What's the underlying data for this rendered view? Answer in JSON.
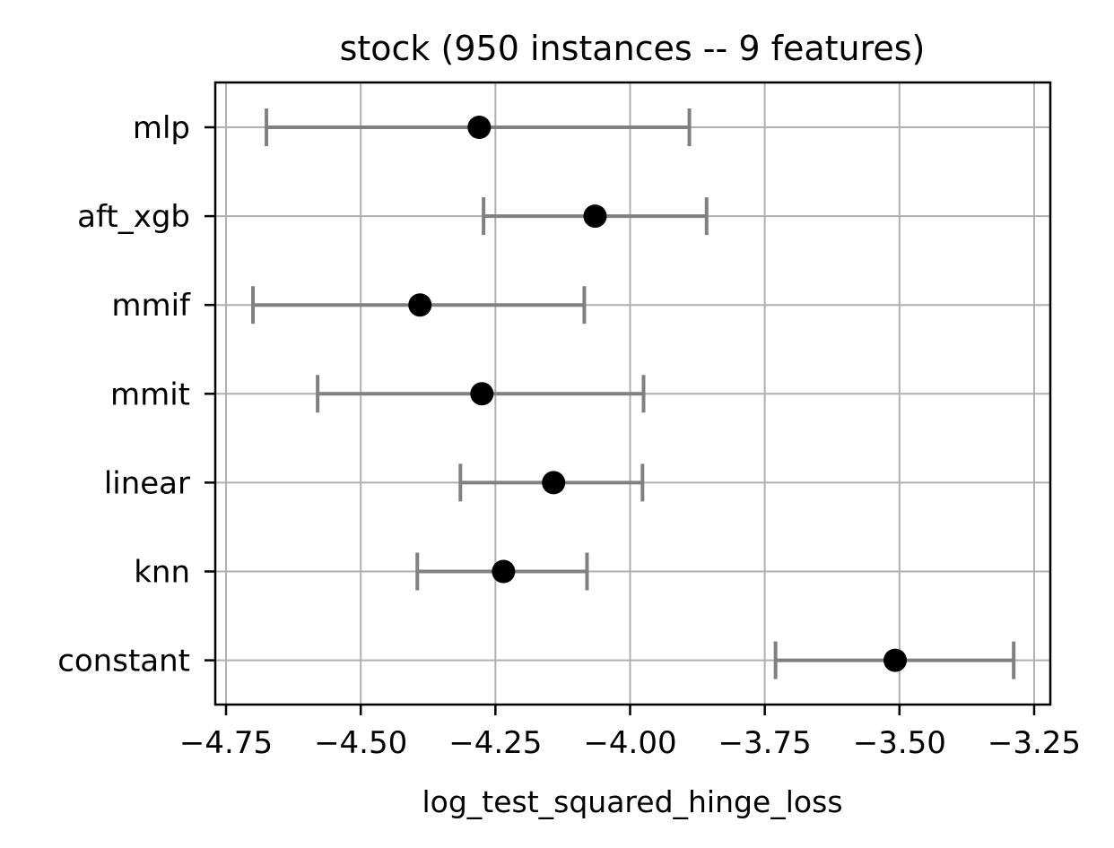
{
  "chart_data": {
    "type": "scatter",
    "title": "stock (950 instances -- 9 features)",
    "xlabel": "log_test_squared_hinge_loss",
    "ylabel": "",
    "xlim": [
      -4.77,
      -3.22
    ],
    "xticks": [
      -4.75,
      -4.5,
      -4.25,
      -4.0,
      -3.75,
      -3.5,
      -3.25
    ],
    "xtick_labels": [
      "−4.75",
      "−4.50",
      "−4.25",
      "−4.00",
      "−3.75",
      "−3.50",
      "−3.25"
    ],
    "grid": true,
    "categories": [
      "mlp",
      "aft_xgb",
      "mmif",
      "mmit",
      "linear",
      "knn",
      "constant"
    ],
    "values": [
      -4.28,
      -4.065,
      -4.39,
      -4.275,
      -4.142,
      -4.235,
      -3.508
    ],
    "err_low": [
      -4.675,
      -4.272,
      -4.7,
      -4.58,
      -4.315,
      -4.395,
      -3.73
    ],
    "err_high": [
      -3.89,
      -3.858,
      -4.085,
      -3.975,
      -3.977,
      -4.08,
      -3.288
    ],
    "point_color": "#000000",
    "error_color": "#808080"
  }
}
